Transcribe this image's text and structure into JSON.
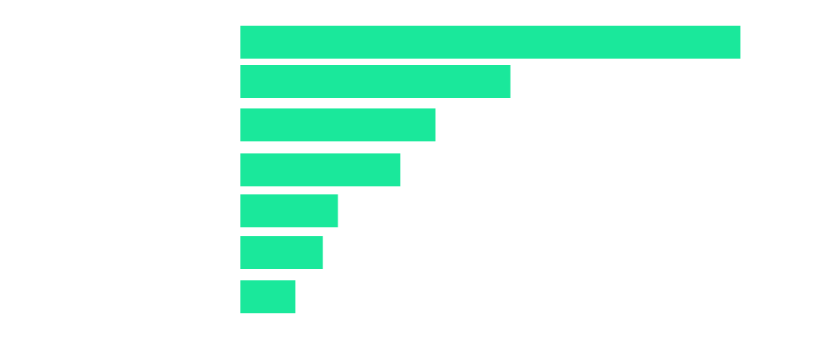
{
  "chart_data": {
    "type": "bar",
    "orientation": "horizontal",
    "bar_color": "#1ae89b",
    "background_color": "#ffffff",
    "grid": false,
    "axes_visible": false,
    "legend": "none",
    "values": [
      100,
      54,
      39,
      32,
      19.5,
      16.5,
      11
    ]
  }
}
